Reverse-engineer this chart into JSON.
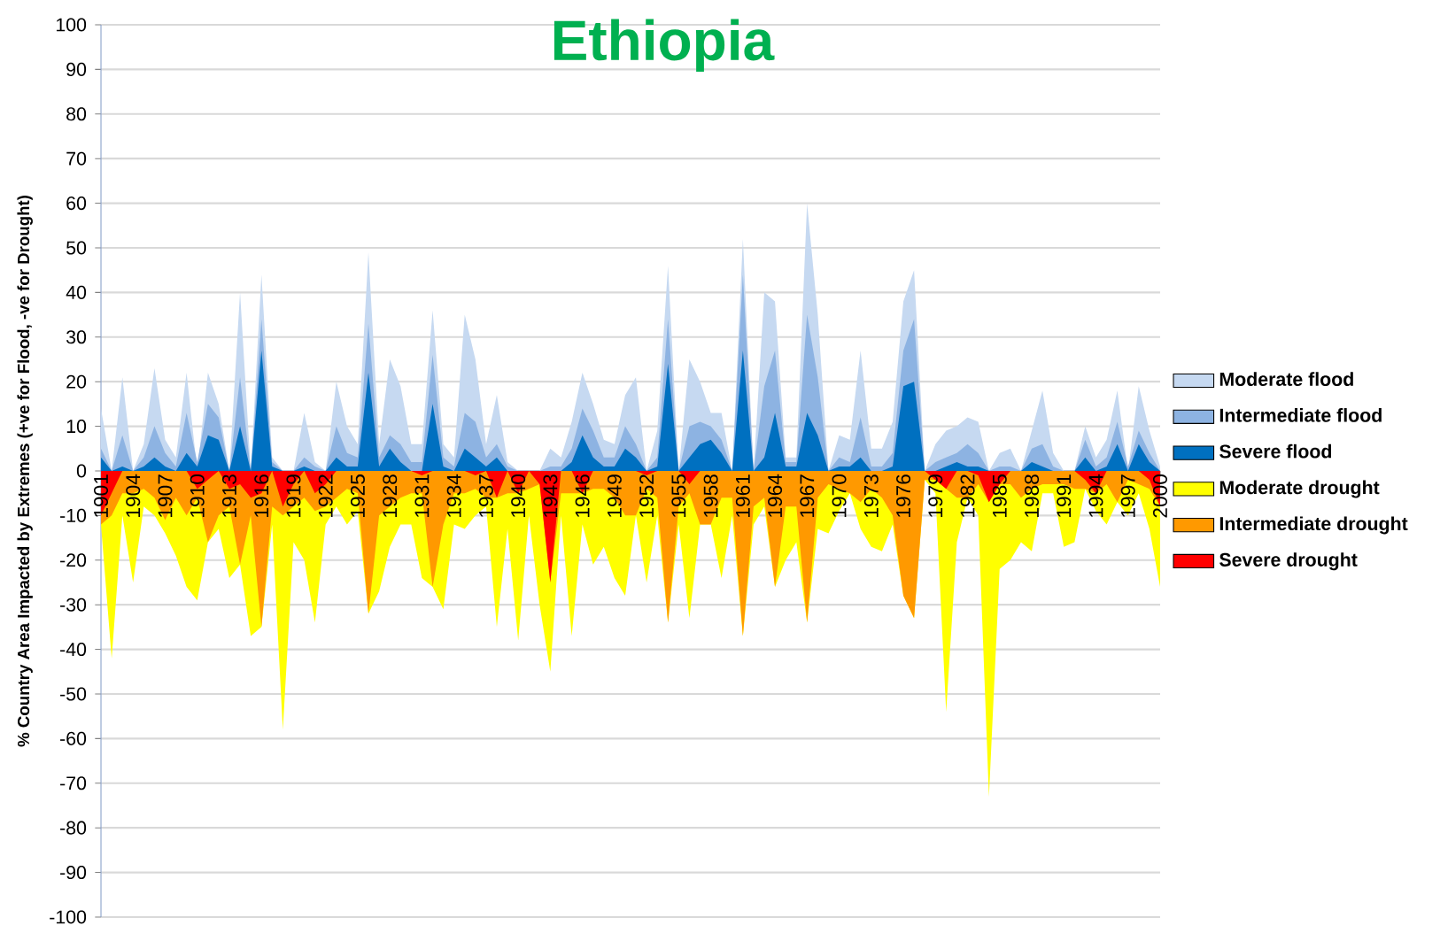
{
  "chart_data": {
    "type": "area",
    "title": "Ethiopia",
    "ylabel": "% Country Area Impacted by Extremes (+ve for Flood, -ve for Drought)",
    "categories": [
      "1901",
      null,
      null,
      "1904",
      null,
      null,
      "1907",
      null,
      null,
      "1910",
      null,
      null,
      "1913",
      null,
      null,
      "1916",
      null,
      null,
      "1919",
      null,
      null,
      "1922",
      null,
      null,
      "1925",
      null,
      null,
      "1928",
      null,
      null,
      "1931",
      null,
      null,
      "1934",
      null,
      null,
      "1937",
      null,
      null,
      "1940",
      null,
      null,
      "1943",
      null,
      null,
      "1946",
      null,
      null,
      "1949",
      null,
      null,
      "1952",
      null,
      null,
      "1955",
      null,
      null,
      "1958",
      null,
      null,
      "1961",
      null,
      null,
      "1964",
      null,
      null,
      "1967",
      null,
      null,
      "1970",
      null,
      null,
      "1973",
      null,
      null,
      "1976",
      null,
      null,
      "1979",
      null,
      null,
      "1982",
      null,
      null,
      "1985",
      null,
      null,
      "1988",
      null,
      null,
      "1991",
      null,
      null,
      "1994",
      null,
      null,
      "1997",
      null,
      null,
      "2000"
    ],
    "ylim": [
      -100,
      100
    ],
    "yticks": [
      -100,
      -90,
      -80,
      -70,
      -60,
      -50,
      -40,
      -30,
      -20,
      -10,
      0,
      10,
      20,
      30,
      40,
      50,
      60,
      70,
      80,
      90,
      100
    ],
    "grid": "y",
    "legend": "right",
    "series": [
      {
        "name": "Moderate flood",
        "color": "#c6d9f1",
        "values": [
          14,
          0,
          21,
          0,
          6,
          23,
          7,
          3,
          22,
          null,
          22,
          15,
          null,
          40,
          null,
          44,
          3,
          0,
          0,
          13,
          2,
          0,
          20,
          10,
          6,
          49,
          6,
          25,
          19,
          6,
          6,
          36,
          6,
          3,
          35,
          25,
          6,
          17,
          2,
          0,
          0,
          0,
          5,
          3,
          11,
          22,
          15,
          7,
          6,
          17,
          21,
          0,
          9,
          46,
          0,
          25,
          20,
          13,
          13,
          null,
          52,
          null,
          40,
          38,
          3,
          3,
          60,
          35,
          0,
          8,
          7,
          27,
          5,
          5,
          11,
          38,
          45,
          0,
          6,
          9,
          10,
          12,
          11,
          0,
          4,
          5,
          0,
          9,
          18,
          4,
          0,
          0,
          10,
          3,
          7,
          18,
          null,
          19,
          9,
          1
        ]
      },
      {
        "name": "Intermediate flood",
        "color": "#8db3e2",
        "values": [
          5,
          0,
          8,
          0,
          3,
          10,
          4,
          1,
          13,
          2,
          15,
          12,
          0,
          21,
          0,
          34,
          2,
          0,
          0,
          3,
          1,
          0,
          10,
          4,
          3,
          33,
          3,
          8,
          6,
          2,
          2,
          26,
          3,
          1,
          13,
          11,
          3,
          6,
          1,
          0,
          0,
          0,
          1,
          1,
          5,
          14,
          9,
          3,
          3,
          10,
          6,
          0,
          3,
          34,
          0,
          10,
          11,
          10,
          7,
          0,
          44,
          0,
          19,
          27,
          2,
          2,
          35,
          21,
          0,
          3,
          2,
          12,
          1,
          1,
          4,
          27,
          34,
          0,
          2,
          3,
          4,
          6,
          4,
          0,
          1,
          1,
          0,
          5,
          6,
          1,
          0,
          0,
          7,
          1,
          3,
          11,
          1,
          9,
          4,
          0
        ]
      },
      {
        "name": "Severe flood",
        "color": "#0070c0",
        "values": [
          3,
          0,
          1,
          0,
          1,
          3,
          1,
          0,
          4,
          1,
          8,
          7,
          0,
          10,
          0,
          27,
          1,
          0,
          0,
          1,
          0,
          0,
          3,
          1,
          1,
          22,
          1,
          5,
          2,
          0,
          0,
          15,
          1,
          0,
          5,
          3,
          1,
          3,
          0,
          0,
          0,
          0,
          0,
          0,
          2,
          8,
          3,
          1,
          1,
          5,
          3,
          0,
          1,
          24,
          0,
          3,
          6,
          7,
          4,
          0,
          27,
          0,
          3,
          13,
          1,
          1,
          13,
          8,
          0,
          1,
          1,
          3,
          0,
          0,
          1,
          19,
          20,
          0,
          0,
          1,
          2,
          1,
          1,
          0,
          0,
          0,
          0,
          2,
          1,
          0,
          0,
          0,
          3,
          0,
          1,
          6,
          0,
          6,
          2,
          0
        ]
      },
      {
        "name": "Moderate drought",
        "color": "#ffff00",
        "values": [
          -12,
          -42,
          -10,
          -25,
          -8,
          -10,
          -14,
          -19,
          -26,
          -29,
          -16,
          -13,
          -24,
          -21,
          -37,
          -35,
          -12,
          -58,
          -16,
          -20,
          -34,
          -12,
          -8,
          -12,
          -9,
          -32,
          -27,
          -17,
          -12,
          -12,
          -24,
          -26,
          -31,
          -12,
          -13,
          -10,
          -8,
          -35,
          -13,
          -38,
          -10,
          -30,
          -45,
          -10,
          -37,
          -12,
          -21,
          -17,
          -24,
          -28,
          -10,
          -25,
          -10,
          -34,
          -12,
          -33,
          -12,
          -12,
          -24,
          -10,
          -37,
          -12,
          -8,
          -26,
          -20,
          -16,
          -34,
          -13,
          -14,
          -9,
          -5,
          -13,
          -17,
          -18,
          -12,
          -28,
          -33,
          -2,
          -5,
          -54,
          -16,
          -6,
          -10,
          -73,
          -22,
          -20,
          -16,
          -18,
          -5,
          -5,
          -17,
          -16,
          -4,
          -9,
          -12,
          -7,
          -10,
          -5,
          -13,
          -26
        ]
      },
      {
        "name": "Intermediate drought",
        "color": "#ff9900",
        "values": [
          -12,
          -10,
          -5,
          -5,
          -4,
          -6,
          -11,
          -6,
          -10,
          -6,
          -16,
          -10,
          -8,
          -21,
          -10,
          -35,
          -8,
          -10,
          -8,
          -6,
          -9,
          -8,
          -6,
          -4,
          -5,
          -32,
          -10,
          -8,
          -6,
          -5,
          -5,
          -26,
          -12,
          -5,
          -5,
          -4,
          -6,
          -6,
          -5,
          -5,
          -4,
          -3,
          -25,
          -5,
          -5,
          -5,
          -4,
          -4,
          -6,
          -10,
          -10,
          -4,
          -6,
          -34,
          -8,
          -5,
          -12,
          -12,
          -6,
          -6,
          -37,
          -8,
          -6,
          -26,
          -8,
          -8,
          -34,
          -6,
          -3,
          -4,
          -5,
          -7,
          -4,
          -6,
          -10,
          -28,
          -33,
          -2,
          -2,
          -4,
          -6,
          -6,
          -3,
          -7,
          -3,
          -3,
          -6,
          -4,
          -3,
          -3,
          -3,
          -4,
          -4,
          -5,
          -3,
          -7,
          -2,
          -3,
          -4,
          -8
        ]
      },
      {
        "name": "Severe drought",
        "color": "#ff0000",
        "values": [
          -10,
          -5,
          0,
          0,
          0,
          0,
          0,
          0,
          0,
          -4,
          -2,
          0,
          -4,
          -3,
          -6,
          -5,
          0,
          -8,
          -3,
          0,
          -5,
          -3,
          0,
          0,
          0,
          0,
          0,
          0,
          0,
          0,
          -1,
          0,
          0,
          0,
          0,
          -1,
          0,
          -6,
          0,
          -5,
          0,
          -3,
          -25,
          0,
          0,
          -5,
          0,
          0,
          0,
          0,
          0,
          -1,
          0,
          0,
          0,
          -3,
          0,
          0,
          0,
          0,
          0,
          0,
          0,
          0,
          0,
          0,
          0,
          0,
          0,
          0,
          0,
          0,
          0,
          0,
          0,
          0,
          0,
          0,
          -2,
          -4,
          0,
          0,
          -1,
          -7,
          -3,
          0,
          0,
          0,
          0,
          0,
          0,
          0,
          -2,
          -5,
          0,
          0,
          0,
          0,
          -2,
          -8
        ]
      }
    ]
  }
}
